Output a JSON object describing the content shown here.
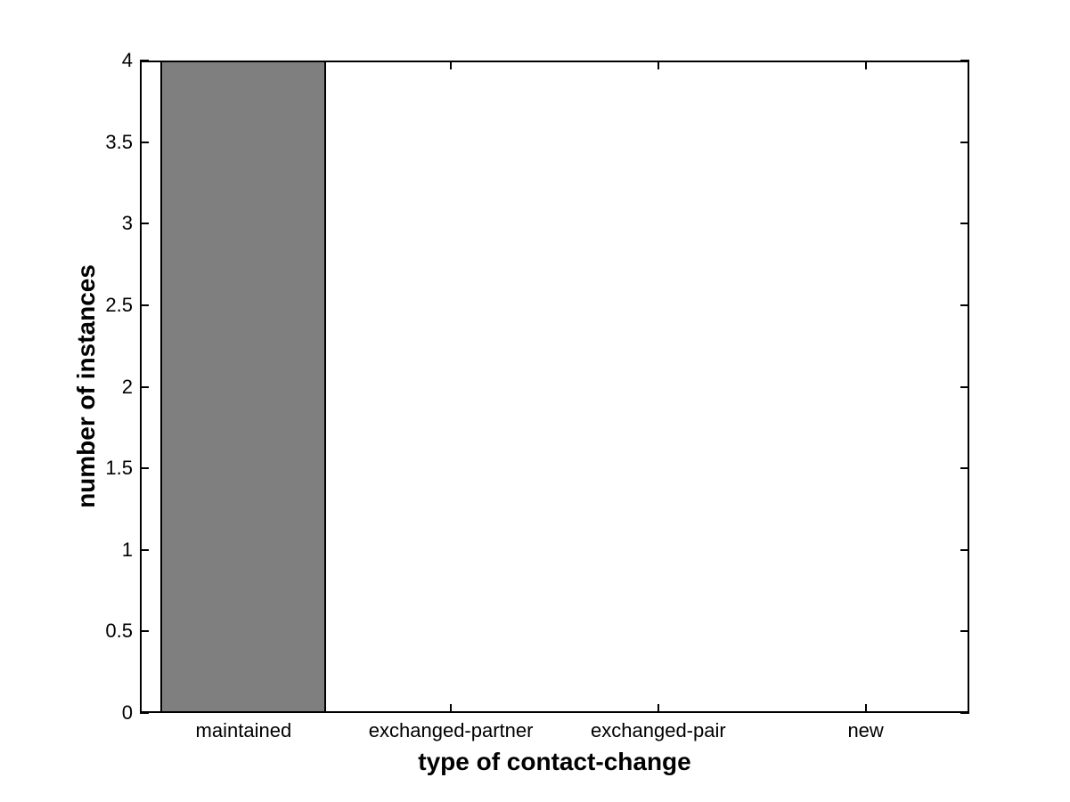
{
  "figure": {
    "background": "#ffffff"
  },
  "chart_data": {
    "type": "bar",
    "title": "",
    "xlabel": "type of contact-change",
    "ylabel": "number of instances",
    "categories": [
      "maintained",
      "exchanged-partner",
      "exchanged-pair",
      "new"
    ],
    "values": [
      4,
      0,
      0,
      0
    ],
    "ylim": [
      0,
      4
    ],
    "yticks": [
      0,
      0.5,
      1,
      1.5,
      2,
      2.5,
      3,
      3.5,
      4
    ],
    "ytick_labels": [
      "0",
      "0.5",
      "1",
      "1.5",
      "2",
      "2.5",
      "3",
      "3.5",
      "4"
    ],
    "bar_width_fraction": 0.8,
    "bar_color": "#7f7f7f",
    "bar_edge_color": "#000000",
    "axis_color": "#000000",
    "text_color": "#000000",
    "grid": false,
    "legend": null
  }
}
